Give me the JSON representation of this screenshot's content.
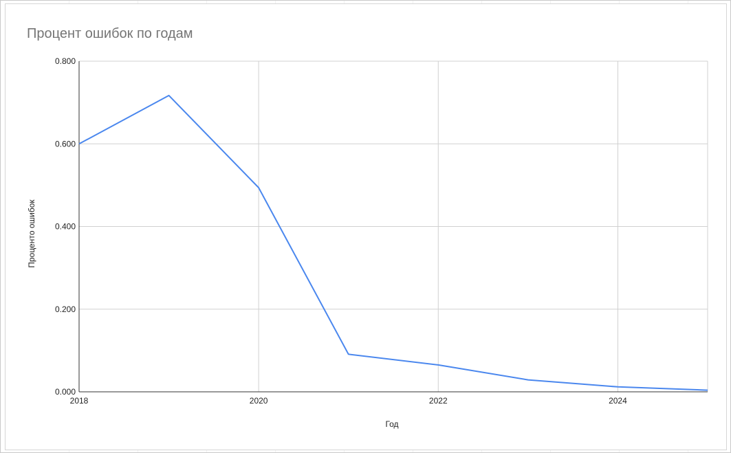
{
  "chart_data": {
    "type": "line",
    "title": "Процент ошибок по годам",
    "xlabel": "Год",
    "ylabel": "Процентo ошибок",
    "x": [
      2018,
      2019,
      2020,
      2021,
      2022,
      2023,
      2024,
      2025
    ],
    "series": [
      {
        "values": [
          0.6,
          0.717,
          0.494,
          0.091,
          0.065,
          0.029,
          0.012,
          0.004
        ],
        "color": "#4a87ee"
      }
    ],
    "x_ticks": [
      "2018",
      "2020",
      "2022",
      "2024"
    ],
    "y_ticks": [
      "0.000",
      "0.200",
      "0.400",
      "0.600",
      "0.800"
    ],
    "xlim": [
      2018,
      2025
    ],
    "ylim": [
      0,
      0.8
    ],
    "grid": true,
    "legend": "none"
  }
}
